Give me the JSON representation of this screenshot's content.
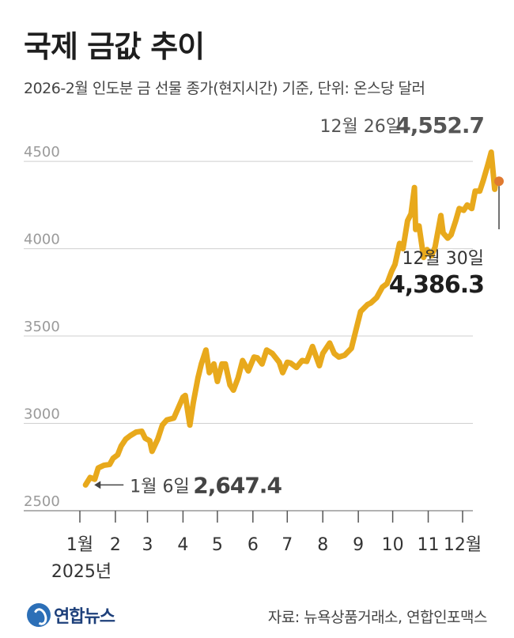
{
  "header": {
    "title": "국제 금값 추이",
    "subtitle": "2026-2월 인도분 금 선물 종가(현지시간) 기준, 단위: 온스당 달러"
  },
  "footer": {
    "logo_text": "연합뉴스",
    "source": "자료: 뉴욕상품거래소, 연합인포맥스"
  },
  "colors": {
    "line": "#e8a91c",
    "last_point": "#e07a30",
    "grid": "#cfcfcf",
    "axis": "#999999"
  },
  "chart_data": {
    "type": "line",
    "ylim": [
      2500,
      4600
    ],
    "yticks": [
      2500,
      3000,
      3500,
      4000,
      4500
    ],
    "xticks": [
      {
        "label": "1월",
        "month": 1
      },
      {
        "label": "2",
        "month": 2
      },
      {
        "label": "3",
        "month": 3
      },
      {
        "label": "4",
        "month": 4
      },
      {
        "label": "5",
        "month": 5
      },
      {
        "label": "6",
        "month": 6
      },
      {
        "label": "7",
        "month": 7
      },
      {
        "label": "8",
        "month": 8
      },
      {
        "label": "9",
        "month": 9
      },
      {
        "label": "10",
        "month": 10
      },
      {
        "label": "11",
        "month": 11
      },
      {
        "label": "12월",
        "month": 12
      }
    ],
    "year_label": "2025년",
    "series": [
      {
        "points": [
          [
            "2025-01-06",
            2647.4
          ],
          [
            "2025-01-10",
            2690
          ],
          [
            "2025-01-14",
            2680
          ],
          [
            "2025-01-17",
            2745
          ],
          [
            "2025-01-22",
            2760
          ],
          [
            "2025-01-27",
            2765
          ],
          [
            "2025-01-30",
            2800
          ],
          [
            "2025-02-03",
            2820
          ],
          [
            "2025-02-06",
            2870
          ],
          [
            "2025-02-10",
            2910
          ],
          [
            "2025-02-14",
            2930
          ],
          [
            "2025-02-19",
            2950
          ],
          [
            "2025-02-24",
            2955
          ],
          [
            "2025-02-27",
            2915
          ],
          [
            "2025-03-03",
            2900
          ],
          [
            "2025-03-05",
            2840
          ],
          [
            "2025-03-10",
            2910
          ],
          [
            "2025-03-14",
            2990
          ],
          [
            "2025-03-18",
            3020
          ],
          [
            "2025-03-24",
            3030
          ],
          [
            "2025-03-28",
            3090
          ],
          [
            "2025-04-01",
            3150
          ],
          [
            "2025-04-03",
            3160
          ],
          [
            "2025-04-07",
            2990
          ],
          [
            "2025-04-10",
            3120
          ],
          [
            "2025-04-14",
            3260
          ],
          [
            "2025-04-17",
            3340
          ],
          [
            "2025-04-21",
            3420
          ],
          [
            "2025-04-24",
            3290
          ],
          [
            "2025-04-28",
            3340
          ],
          [
            "2025-05-01",
            3240
          ],
          [
            "2025-05-05",
            3340
          ],
          [
            "2025-05-08",
            3340
          ],
          [
            "2025-05-12",
            3220
          ],
          [
            "2025-05-15",
            3190
          ],
          [
            "2025-05-19",
            3260
          ],
          [
            "2025-05-23",
            3360
          ],
          [
            "2025-05-28",
            3300
          ],
          [
            "2025-06-02",
            3380
          ],
          [
            "2025-06-05",
            3375
          ],
          [
            "2025-06-09",
            3340
          ],
          [
            "2025-06-13",
            3420
          ],
          [
            "2025-06-18",
            3400
          ],
          [
            "2025-06-24",
            3350
          ],
          [
            "2025-06-27",
            3290
          ],
          [
            "2025-07-01",
            3350
          ],
          [
            "2025-07-04",
            3345
          ],
          [
            "2025-07-09",
            3320
          ],
          [
            "2025-07-14",
            3360
          ],
          [
            "2025-07-18",
            3355
          ],
          [
            "2025-07-23",
            3440
          ],
          [
            "2025-07-29",
            3330
          ],
          [
            "2025-08-01",
            3400
          ],
          [
            "2025-08-07",
            3460
          ],
          [
            "2025-08-11",
            3400
          ],
          [
            "2025-08-15",
            3380
          ],
          [
            "2025-08-20",
            3390
          ],
          [
            "2025-08-26",
            3430
          ],
          [
            "2025-08-29",
            3510
          ],
          [
            "2025-09-03",
            3640
          ],
          [
            "2025-09-09",
            3680
          ],
          [
            "2025-09-12",
            3690
          ],
          [
            "2025-09-17",
            3720
          ],
          [
            "2025-09-22",
            3780
          ],
          [
            "2025-09-26",
            3800
          ],
          [
            "2025-09-30",
            3870
          ],
          [
            "2025-10-03",
            3910
          ],
          [
            "2025-10-07",
            4030
          ],
          [
            "2025-10-10",
            4000
          ],
          [
            "2025-10-14",
            4160
          ],
          [
            "2025-10-17",
            4200
          ],
          [
            "2025-10-20",
            4350
          ],
          [
            "2025-10-21",
            4110
          ],
          [
            "2025-10-24",
            4130
          ],
          [
            "2025-10-28",
            3950
          ],
          [
            "2025-10-31",
            3995
          ],
          [
            "2025-11-04",
            3960
          ],
          [
            "2025-11-07",
            4010
          ],
          [
            "2025-11-12",
            4190
          ],
          [
            "2025-11-14",
            4090
          ],
          [
            "2025-11-18",
            4060
          ],
          [
            "2025-11-21",
            4080
          ],
          [
            "2025-11-25",
            4160
          ],
          [
            "2025-11-28",
            4230
          ],
          [
            "2025-12-02",
            4220
          ],
          [
            "2025-12-05",
            4250
          ],
          [
            "2025-12-09",
            4230
          ],
          [
            "2025-12-12",
            4330
          ],
          [
            "2025-12-16",
            4330
          ],
          [
            "2025-12-19",
            4390
          ],
          [
            "2025-12-23",
            4480
          ],
          [
            "2025-12-26",
            4552.7
          ],
          [
            "2025-12-29",
            4340
          ],
          [
            "2025-12-30",
            4386.3
          ]
        ]
      }
    ],
    "annotations": [
      {
        "date": "2025-01-06",
        "label": "1월 6일",
        "value_text": "2,647.4"
      },
      {
        "date": "2025-12-26",
        "label": "12월 26일",
        "value_text": "4,552.7"
      },
      {
        "date": "2025-12-30",
        "label": "12월 30일",
        "value_text": "4,386.3"
      }
    ]
  }
}
